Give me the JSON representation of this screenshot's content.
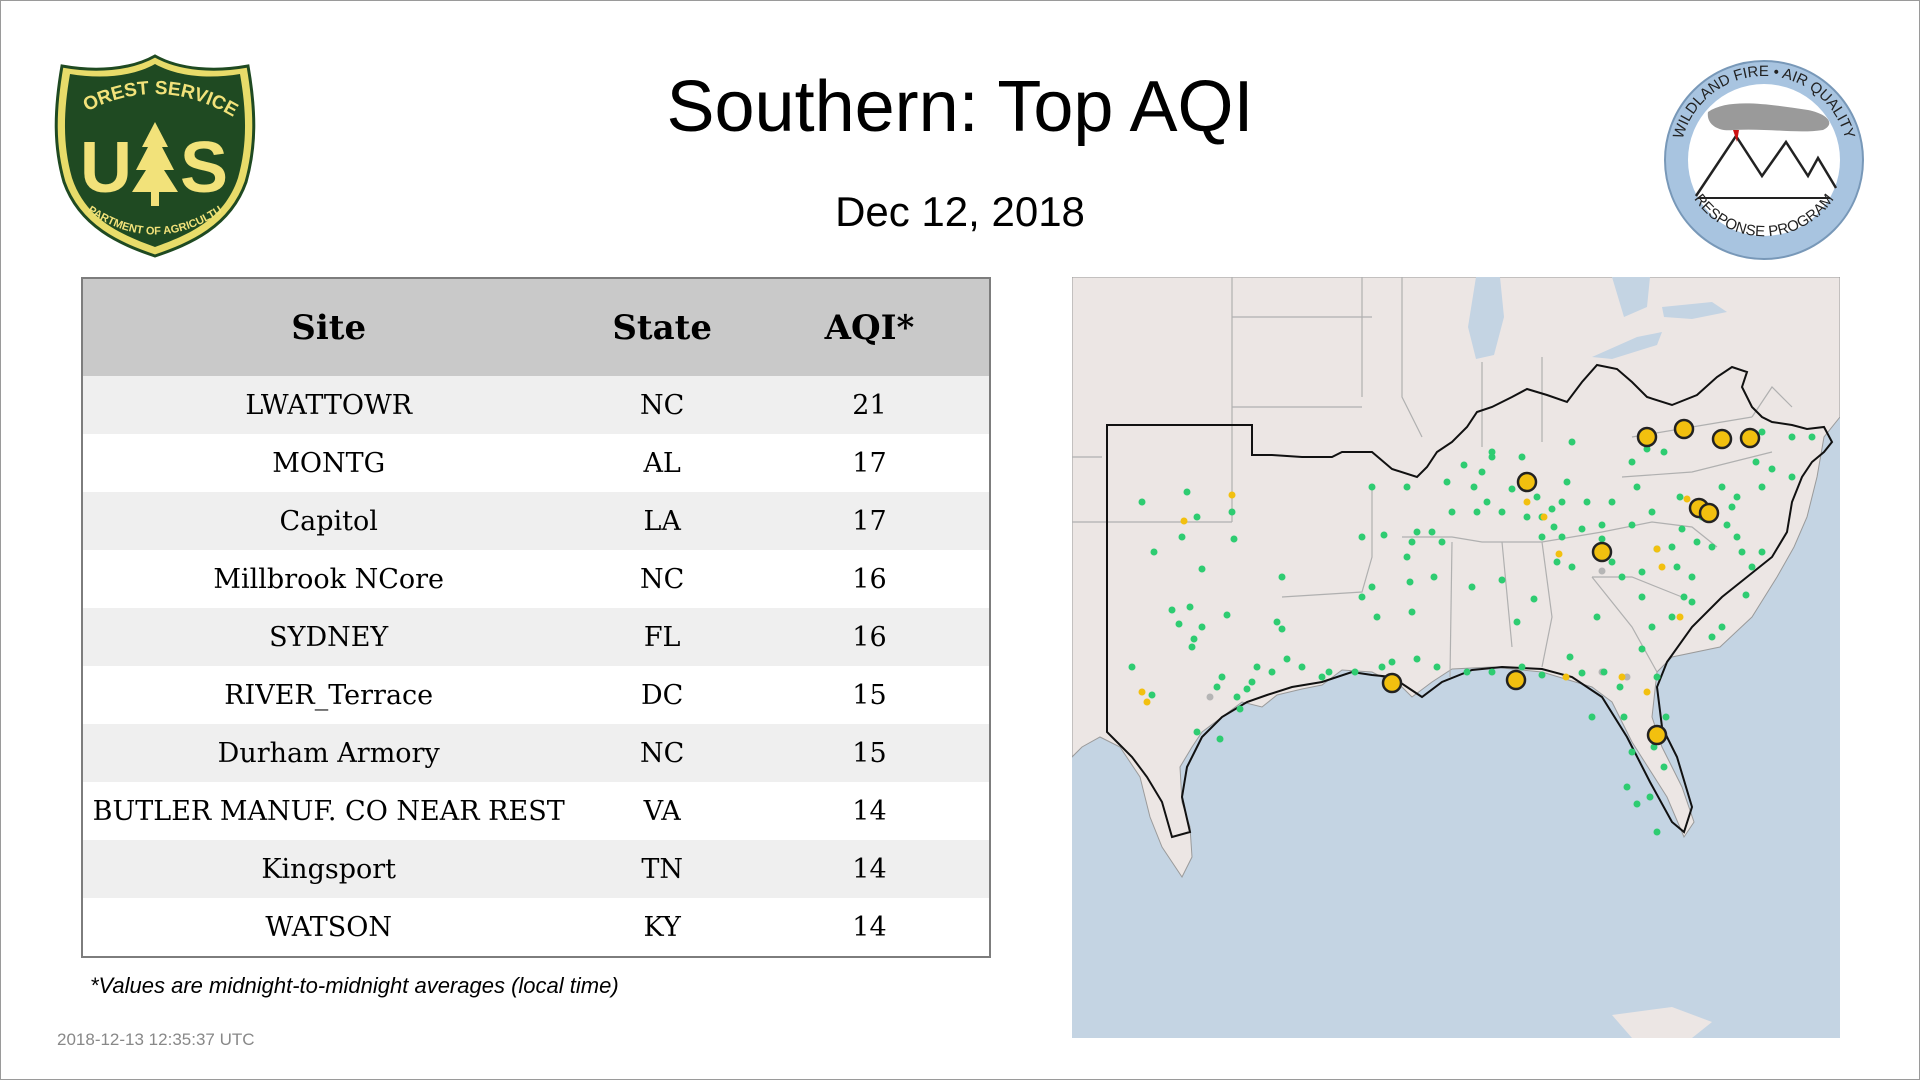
{
  "title": "Southern: Top AQI",
  "date": "Dec 12, 2018",
  "logos": {
    "forest_service": {
      "top_text": "FOREST SERVICE",
      "letters": "US",
      "bottom_text": "DEPARTMENT OF AGRICULTURE"
    },
    "wildland_fire": {
      "top_text": "WILDLAND FIRE • AIR QUALITY",
      "bottom_text": "RESPONSE PROGRAM"
    }
  },
  "table": {
    "headers": {
      "site": "Site",
      "state": "State",
      "aqi": "AQI*"
    },
    "rows": [
      {
        "site": "LWATTOWR",
        "state": "NC",
        "aqi": "21"
      },
      {
        "site": "MONTG",
        "state": "AL",
        "aqi": "17"
      },
      {
        "site": "Capitol",
        "state": "LA",
        "aqi": "17"
      },
      {
        "site": "Millbrook NCore",
        "state": "NC",
        "aqi": "16"
      },
      {
        "site": "SYDNEY",
        "state": "FL",
        "aqi": "16"
      },
      {
        "site": "RIVER_Terrace",
        "state": "DC",
        "aqi": "15"
      },
      {
        "site": "Durham Armory",
        "state": "NC",
        "aqi": "15"
      },
      {
        "site": "BUTLER MANUF. CO NEAR REST",
        "state": "VA",
        "aqi": "14"
      },
      {
        "site": "Kingsport",
        "state": "TN",
        "aqi": "14"
      },
      {
        "site": "WATSON",
        "state": "KY",
        "aqi": "14"
      }
    ]
  },
  "footnote": "*Values are midnight-to-midnight averages (local time)",
  "timestamp": "2018-12-13 12:35:37 UTC",
  "colors": {
    "good_marker": "#2ecc71",
    "moderate_marker": "#f2c00f",
    "top_site_marker": "#f2c00f",
    "no_data_marker": "#b5b5b5",
    "land": "#ece6e4",
    "water": "#c4d4e3",
    "header_bg": "#c9c9c9",
    "fs_green": "#1f4a22",
    "fs_gold": "#f2e27a",
    "wf_blue": "#a8c4e0"
  }
}
